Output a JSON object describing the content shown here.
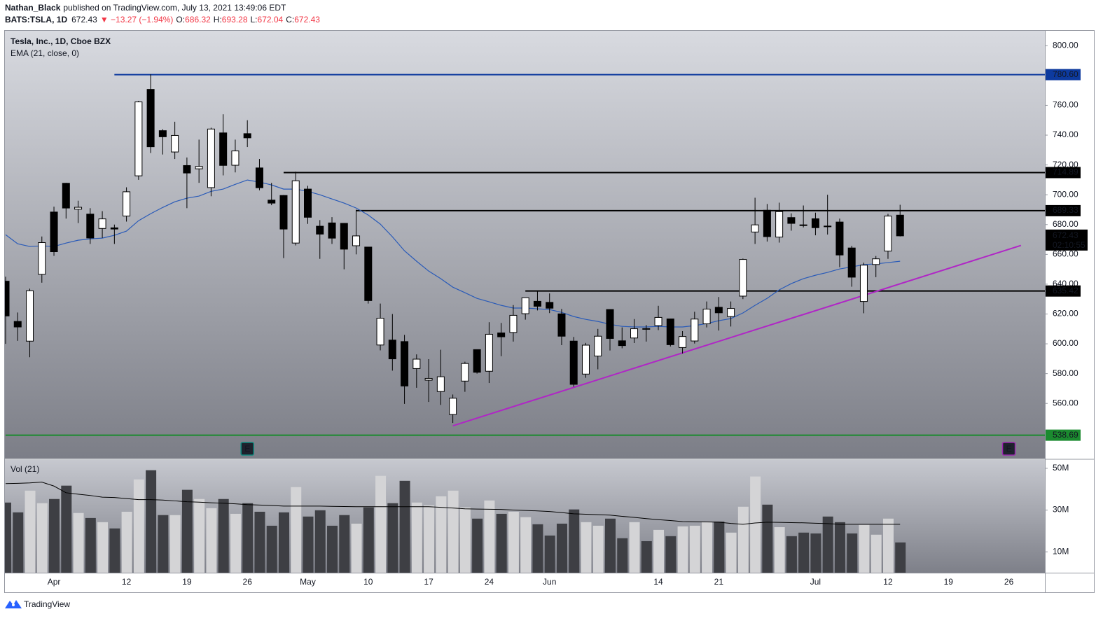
{
  "header": {
    "author": "Nathan_Black",
    "published": "published on TradingView.com, July 13, 2021 13:49:06 EDT",
    "symbol": "BATS:TSLA, 1D",
    "change": "▼ −13.27 (−1.94%)",
    "ohlc_labels": [
      "O:",
      "H:",
      "L:",
      "C:"
    ]
  },
  "chart_data": {
    "type": "candlestick",
    "title": "Tesla, Inc., 1D, Cboe BZX",
    "categories": [
      null,
      null,
      null,
      null,
      "Apr",
      null,
      null,
      null,
      null,
      null,
      "12",
      null,
      null,
      null,
      null,
      "19",
      null,
      null,
      null,
      null,
      "26",
      null,
      null,
      null,
      null,
      "May",
      null,
      null,
      null,
      null,
      "10",
      null,
      null,
      null,
      null,
      "17",
      null,
      null,
      null,
      null,
      "24",
      null,
      null,
      null,
      null,
      "Jun",
      null,
      null,
      null,
      null,
      null,
      null,
      null,
      null,
      "14",
      null,
      null,
      null,
      null,
      "21",
      null,
      null,
      null,
      null,
      null,
      null,
      null,
      "Jul",
      null,
      null,
      null,
      null,
      null,
      "12",
      null
    ],
    "xticks": [
      {
        "value": 78,
        "label": "19"
      },
      {
        "value": 83,
        "label": "26"
      }
    ],
    "open": [
      642,
      615,
      601.8,
      646.6,
      688.4,
      707.7,
      690.3,
      687,
      677.4,
      677.8,
      685.7,
      712.7,
      770.7,
      743,
      728.7,
      719.6,
      717.4,
      704.8,
      741.5,
      719.8,
      741,
      718,
      696.4,
      699.5,
      667.6,
      703.8,
      678.9,
      681.1,
      680.8,
      665.8,
      664.9,
      599.2,
      602.5,
      601.5,
      583.4,
      575.6,
      568,
      552.6,
      575,
      596.1,
      581.6,
      607.3,
      607.6,
      620.2,
      628.5,
      627.8,
      620.1,
      601.8,
      579.7,
      591.8,
      623,
      602,
      603.9,
      610.2,
      612.2,
      616.7,
      597.5,
      601.9,
      613.4,
      624.5,
      618.3,
      632,
      675,
      689.6,
      671.6,
      684.7,
      679.8,
      683.9,
      679,
      681.7,
      664.3,
      628.4,
      653.2,
      662.2,
      686.32
    ],
    "high": [
      645,
      621,
      637,
      672,
      692,
      708,
      696,
      691,
      689,
      680,
      705,
      763,
      780.8,
      744,
      749,
      725,
      737,
      745,
      754,
      737,
      750,
      724,
      708,
      699.8,
      715.5,
      706,
      683,
      685,
      681,
      690,
      665,
      627,
      620,
      606,
      592.9,
      589.7,
      596,
      566,
      588,
      596.1,
      614.5,
      614,
      626,
      631,
      635.6,
      633.8,
      623.4,
      604.6,
      600.6,
      610,
      623.1,
      611,
      616.6,
      612.6,
      625.5,
      616.8,
      608.5,
      621.5,
      628.4,
      631.4,
      628.4,
      657.2,
      698,
      693.8,
      694.7,
      687.5,
      692.8,
      688,
      700,
      684,
      665.7,
      654.4,
      658.9,
      687.2,
      693.28
    ],
    "low": [
      600,
      602,
      591,
      641,
      659,
      684,
      681,
      667,
      671,
      667,
      682,
      710,
      728,
      727,
      724,
      691,
      708,
      699,
      713,
      715,
      732,
      703,
      693,
      657.5,
      666,
      680.5,
      657,
      667,
      650,
      660,
      627,
      595.6,
      582,
      559.7,
      570.5,
      561,
      559,
      546.9,
      567.8,
      580,
      573.7,
      591.7,
      601.5,
      616.2,
      622.4,
      620.6,
      599.1,
      571.2,
      577.2,
      582.9,
      595.5,
      597,
      600.5,
      601.5,
      609.2,
      598.2,
      593.5,
      600.2,
      611,
      608.9,
      611.6,
      630,
      667,
      668.6,
      667.9,
      675.9,
      678.1,
      672.8,
      673.3,
      651.4,
      638.3,
      620.5,
      644.7,
      657,
      672.04
    ],
    "close": [
      618.7,
      611.3,
      635.6,
      667.9,
      661.8,
      691.1,
      691.6,
      671,
      683.8,
      677,
      702,
      762.3,
      732.2,
      738.9,
      739.8,
      714.6,
      719,
      744.1,
      719.7,
      729.4,
      738.2,
      704.7,
      694.4,
      677,
      709.4,
      684.9,
      673.6,
      670.9,
      663.5,
      672.4,
      629,
      617.2,
      589.9,
      571.7,
      589.7,
      576.8,
      577.9,
      563.5,
      586.8,
      580.9,
      606.4,
      604.7,
      619.1,
      630.9,
      625.2,
      623.9,
      605.1,
      572.8,
      599.1,
      605.1,
      603.6,
      598.8,
      610.1,
      609.9,
      617.7,
      599.4,
      604.9,
      616.6,
      623.3,
      620.8,
      623.7,
      656.6,
      679.8,
      671.9,
      688.7,
      680.8,
      679.7,
      677.9,
      678.9,
      659.6,
      644.7,
      652.8,
      657,
      685.7,
      672.43
    ],
    "up_color": "#ffffff",
    "down_color": "#000000",
    "ylim": [
      523,
      810
    ],
    "yticks": [
      {
        "value": 800,
        "label": "800.00"
      },
      {
        "value": 760,
        "label": "760.00"
      },
      {
        "value": 740,
        "label": "740.00"
      },
      {
        "value": 720,
        "label": "720.00"
      },
      {
        "value": 700,
        "label": "700.00"
      },
      {
        "value": 680,
        "label": "680.00"
      },
      {
        "value": 660,
        "label": "660.00"
      },
      {
        "value": 640,
        "label": "640.00"
      },
      {
        "value": 620,
        "label": "620.00"
      },
      {
        "value": 600,
        "label": "600.00"
      },
      {
        "value": 580,
        "label": "580.00"
      },
      {
        "value": 560,
        "label": "560.00"
      }
    ],
    "ema": {
      "name": "EMA (21, close, 0)",
      "color": "#2a5bb8",
      "values": [
        673.2,
        667.1,
        665.3,
        665.7,
        665.3,
        667.6,
        669.5,
        670.4,
        670.9,
        672.8,
        675.6,
        682.6,
        687.3,
        691.5,
        695.3,
        697.7,
        699.1,
        702.3,
        703.8,
        707,
        709.9,
        708.5,
        706.6,
        703.8,
        703.8,
        702.3,
        700,
        697.2,
        694.4,
        691.1,
        686.4,
        680.3,
        671.8,
        662.4,
        655.4,
        648.8,
        643.7,
        638,
        634.3,
        630.5,
        628.2,
        625.8,
        624,
        624,
        623.5,
        623,
        621.1,
        618.3,
        616.4,
        615,
        613.1,
        611.7,
        611.3,
        611.3,
        611.7,
        611.3,
        611.3,
        612.2,
        613.6,
        615.5,
        616.9,
        620.7,
        625.8,
        630.5,
        636.2,
        640.4,
        643.7,
        646,
        647.9,
        650.2,
        651.6,
        653.1,
        653.6,
        654.5,
        655.4
      ]
    },
    "price_lines": [
      {
        "value": 780.6,
        "label": "780.60",
        "color": "#0d3a9e",
        "from_bar": 9
      },
      {
        "value": 714.89,
        "label": "714.89",
        "color": "#000000",
        "from_bar": 23
      },
      {
        "value": 689.33,
        "label": "689.33",
        "color": "#000000",
        "from_bar": 29
      },
      {
        "value": 635.42,
        "label": "635.42",
        "color": "#000000",
        "from_bar": 43
      },
      {
        "value": 538.69,
        "label": "538.69",
        "color": "#1b8a2f",
        "from_bar": 0
      }
    ],
    "trendline": {
      "color": "#b026c6",
      "from": {
        "bar": 37,
        "price": 545
      },
      "to": {
        "bar": 84,
        "price": 666
      }
    },
    "countdown": "02:10:55",
    "earnings": [
      {
        "bar": 20,
        "label": "E",
        "color": "#0f8a7e"
      },
      {
        "bar": 83,
        "label": "E",
        "color": "#9c27b0"
      }
    ],
    "volume": {
      "name": "Vol (21)",
      "up_color": "#d4d4d6",
      "down_color": "#3e3f44",
      "ma_color": "#000000",
      "values": [
        33600000,
        28900000,
        39300000,
        33300000,
        35300000,
        41700000,
        28600000,
        26200000,
        24200000,
        21200000,
        29200000,
        44700000,
        49100000,
        27600000,
        27600000,
        39700000,
        35300000,
        30900000,
        35300000,
        28200000,
        33300000,
        29200000,
        22500000,
        28900000,
        41000000,
        26900000,
        29900000,
        22500000,
        27600000,
        23500000,
        31300000,
        46400000,
        33300000,
        44000000,
        33600000,
        32300000,
        36600000,
        39300000,
        31300000,
        25900000,
        34600000,
        28200000,
        29200000,
        26600000,
        23200000,
        17800000,
        23500000,
        30300000,
        24200000,
        22500000,
        25900000,
        16500000,
        24200000,
        15100000,
        20500000,
        17500000,
        22200000,
        22500000,
        24200000,
        24500000,
        19200000,
        31600000,
        46100000,
        32600000,
        21800000,
        17500000,
        19200000,
        18800000,
        26900000,
        24200000,
        18800000,
        22900000,
        18200000,
        25900000,
        14500000
      ],
      "ma_values": [
        42700000,
        42800000,
        43000000,
        43400000,
        41500000,
        38300000,
        37600000,
        37000000,
        36200000,
        36000000,
        35500000,
        35000000,
        35000000,
        34800000,
        34400000,
        34000000,
        33800000,
        33500000,
        33300000,
        33000000,
        32600000,
        32400000,
        32200000,
        31900000,
        31900000,
        31900000,
        31900000,
        31800000,
        31700000,
        31600000,
        31600000,
        31600000,
        31600000,
        31600000,
        31600000,
        31600000,
        31300000,
        31000000,
        30600000,
        30500000,
        30400000,
        30300000,
        30000000,
        29800000,
        29600000,
        29300000,
        28800000,
        28200000,
        28000000,
        27800000,
        27600000,
        27000000,
        26500000,
        25900000,
        25400000,
        25000000,
        24500000,
        24400000,
        24300000,
        24200000,
        23600000,
        23200000,
        23800000,
        24200000,
        24100000,
        24000000,
        23900000,
        23700000,
        23500000,
        23200000,
        23200000,
        23200000,
        23200000,
        23200000,
        23200000
      ],
      "ylim": [
        0,
        54000000
      ],
      "yticks": [
        {
          "value": 50000000,
          "label": "50M"
        },
        {
          "value": 30000000,
          "label": "30M"
        },
        {
          "value": 10000000,
          "label": "10M"
        }
      ]
    }
  },
  "footer": {
    "brand": "TradingView"
  }
}
